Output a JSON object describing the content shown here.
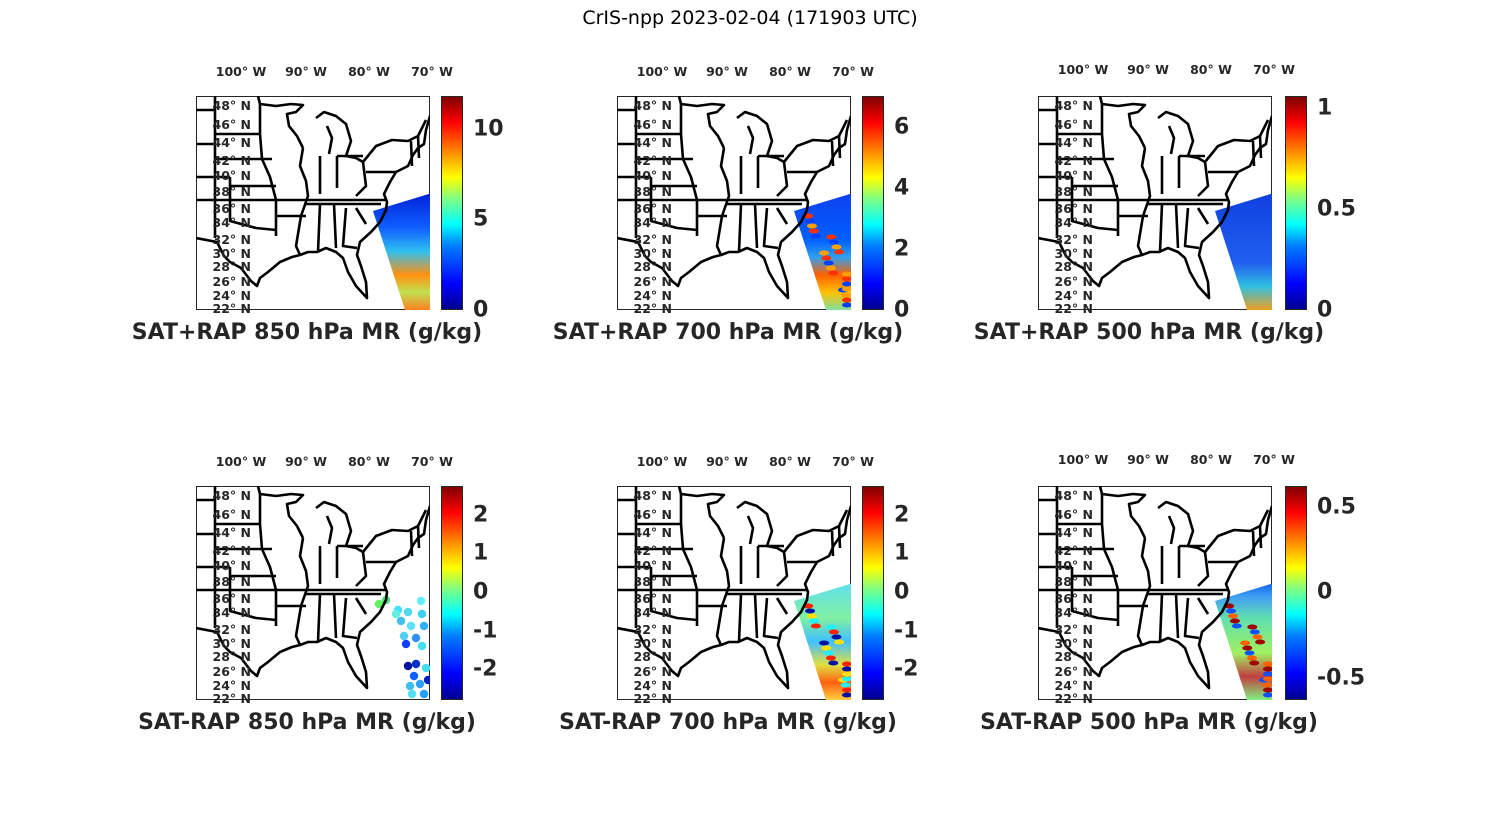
{
  "title": "CrIS-npp 2023-02-04 (171903 UTC)",
  "lon_labels": [
    "100° W",
    "90° W",
    "80° W",
    "70° W"
  ],
  "lat_labels": [
    "48° N",
    "46° N",
    "44° N",
    "42° N",
    "40° N",
    "38° N",
    "36° N",
    "34° N",
    "32° N",
    "30° N",
    "28° N",
    "26° N",
    "24° N",
    "22° N"
  ],
  "panels": [
    {
      "title": "SAT+RAP 850 hPa MR (g/kg)",
      "clim": [
        0,
        11.8
      ],
      "ticks": [
        {
          "v": 0,
          "label": "0"
        },
        {
          "v": 5,
          "label": "5"
        },
        {
          "v": 10,
          "label": "10"
        }
      ],
      "swath": "p1"
    },
    {
      "title": "SAT+RAP 700 hPa MR (g/kg)",
      "clim": [
        0,
        7.0
      ],
      "ticks": [
        {
          "v": 0,
          "label": "0"
        },
        {
          "v": 2,
          "label": "2"
        },
        {
          "v": 4,
          "label": "4"
        },
        {
          "v": 6,
          "label": "6"
        }
      ],
      "swath": "p2"
    },
    {
      "title": "SAT+RAP 500 hPa MR (g/kg)",
      "clim": [
        0,
        1.06
      ],
      "ticks": [
        {
          "v": 0,
          "label": "0"
        },
        {
          "v": 0.5,
          "label": "0.5"
        },
        {
          "v": 1,
          "label": "1"
        }
      ],
      "swath": "p3"
    },
    {
      "title": "SAT-RAP 850 hPa MR (g/kg)",
      "clim": [
        -2.8,
        2.75
      ],
      "ticks": [
        {
          "v": -2,
          "label": "-2"
        },
        {
          "v": -1,
          "label": "-1"
        },
        {
          "v": 0,
          "label": "0"
        },
        {
          "v": 1,
          "label": "1"
        },
        {
          "v": 2,
          "label": "2"
        }
      ],
      "swath": "dots"
    },
    {
      "title": "SAT-RAP 700 hPa MR (g/kg)",
      "clim": [
        -2.8,
        2.75
      ],
      "ticks": [
        {
          "v": -2,
          "label": "-2"
        },
        {
          "v": -1,
          "label": "-1"
        },
        {
          "v": 0,
          "label": "0"
        },
        {
          "v": 1,
          "label": "1"
        },
        {
          "v": 2,
          "label": "2"
        }
      ],
      "swath": "p5"
    },
    {
      "title": "SAT-RAP 500 hPa MR (g/kg)",
      "clim": [
        -0.63,
        0.62
      ],
      "ticks": [
        {
          "v": -0.5,
          "label": "-0.5"
        },
        {
          "v": 0,
          "label": "0"
        },
        {
          "v": 0.5,
          "label": "0.5"
        }
      ],
      "swath": "p6"
    }
  ]
}
